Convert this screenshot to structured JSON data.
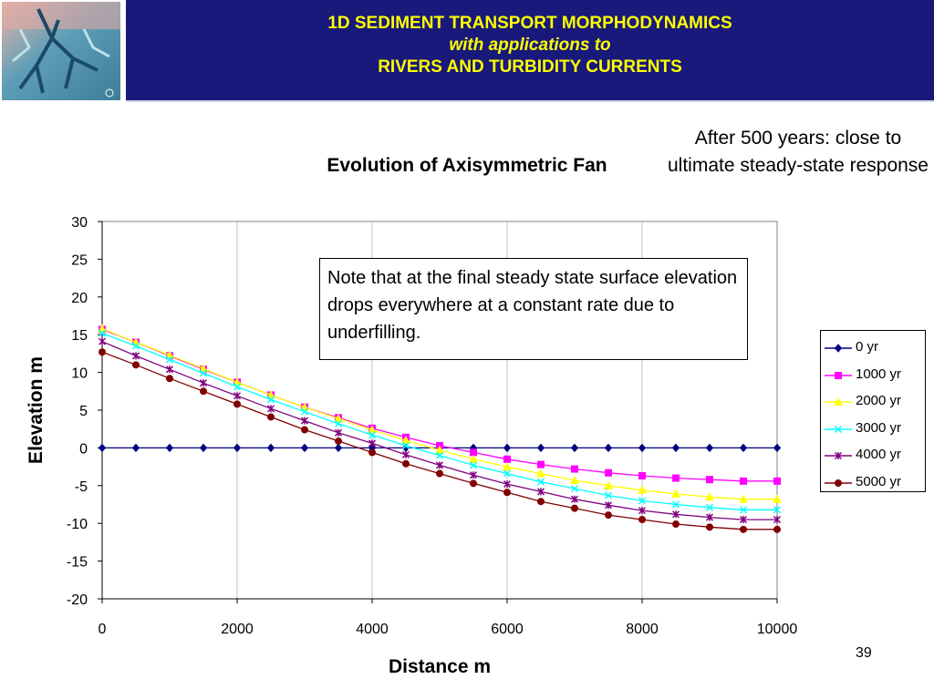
{
  "header": {
    "line1": "1D SEDIMENT TRANSPORT MORPHODYNAMICS",
    "line2": "with applications to",
    "line3": "RIVERS AND TURBIDITY CURRENTS",
    "bar_color": "#18197a",
    "text_color": "#ffff00"
  },
  "side_note": "After 500 years: close to ultimate steady-state response",
  "callout_text": "Note that at the final steady state surface elevation drops everywhere at a constant rate due to underfilling.",
  "slide_number": "39",
  "chart_data": {
    "type": "line",
    "title": "Evolution of Axisymmetric Fan",
    "xlabel": "Distance m",
    "ylabel": "Elevation m",
    "xlim": [
      0,
      10000
    ],
    "ylim": [
      -20,
      30
    ],
    "xticks": [
      0,
      2000,
      4000,
      6000,
      8000,
      10000
    ],
    "yticks": [
      30,
      25,
      20,
      15,
      10,
      5,
      0,
      -5,
      -10,
      -15,
      -20
    ],
    "grid": "vertical",
    "legend_position": "right",
    "x": [
      0,
      500,
      1000,
      1500,
      2000,
      2500,
      3000,
      3500,
      4000,
      4500,
      5000,
      5500,
      6000,
      6500,
      7000,
      7500,
      8000,
      8500,
      9000,
      9500,
      10000
    ],
    "series": [
      {
        "name": "0 yr",
        "color": "#000080",
        "marker": "diamond",
        "values": [
          0,
          0,
          0,
          0,
          0,
          0,
          0,
          0,
          0,
          0,
          0,
          0,
          0,
          0,
          0,
          0,
          0,
          0,
          0,
          0,
          0
        ]
      },
      {
        "name": "1000 yr",
        "color": "#ff00ff",
        "marker": "square",
        "values": [
          15.7,
          14,
          12.2,
          10.4,
          8.7,
          7,
          5.4,
          4,
          2.6,
          1.4,
          0.3,
          -0.6,
          -1.5,
          -2.2,
          -2.8,
          -3.3,
          -3.7,
          -4,
          -4.2,
          -4.4,
          -4.4
        ]
      },
      {
        "name": "2000 yr",
        "color": "#ffff00",
        "marker": "triangle",
        "values": [
          15.8,
          14,
          12.3,
          10.5,
          8.7,
          7,
          5.4,
          3.9,
          2.4,
          1,
          -0.3,
          -1.5,
          -2.5,
          -3.4,
          -4.3,
          -5,
          -5.6,
          -6.1,
          -6.5,
          -6.8,
          -6.8
        ]
      },
      {
        "name": "3000 yr",
        "color": "#00ffff",
        "marker": "x",
        "values": [
          15.2,
          13.5,
          11.7,
          9.9,
          8.1,
          6.4,
          4.8,
          3.2,
          1.7,
          0.3,
          -1,
          -2.3,
          -3.4,
          -4.5,
          -5.4,
          -6.3,
          -7,
          -7.5,
          -7.9,
          -8.2,
          -8.2
        ]
      },
      {
        "name": "4000 yr",
        "color": "#800080",
        "marker": "star",
        "values": [
          14.1,
          12.2,
          10.4,
          8.6,
          6.9,
          5.2,
          3.6,
          2,
          0.6,
          -0.9,
          -2.3,
          -3.6,
          -4.8,
          -5.8,
          -6.8,
          -7.6,
          -8.3,
          -8.8,
          -9.2,
          -9.5,
          -9.5
        ]
      },
      {
        "name": "5000 yr",
        "color": "#800000",
        "marker": "circle",
        "values": [
          12.7,
          11,
          9.2,
          7.5,
          5.8,
          4.1,
          2.4,
          0.9,
          -0.6,
          -2.1,
          -3.4,
          -4.7,
          -5.9,
          -7.1,
          -8,
          -8.9,
          -9.5,
          -10.1,
          -10.5,
          -10.8,
          -10.8
        ]
      }
    ]
  }
}
